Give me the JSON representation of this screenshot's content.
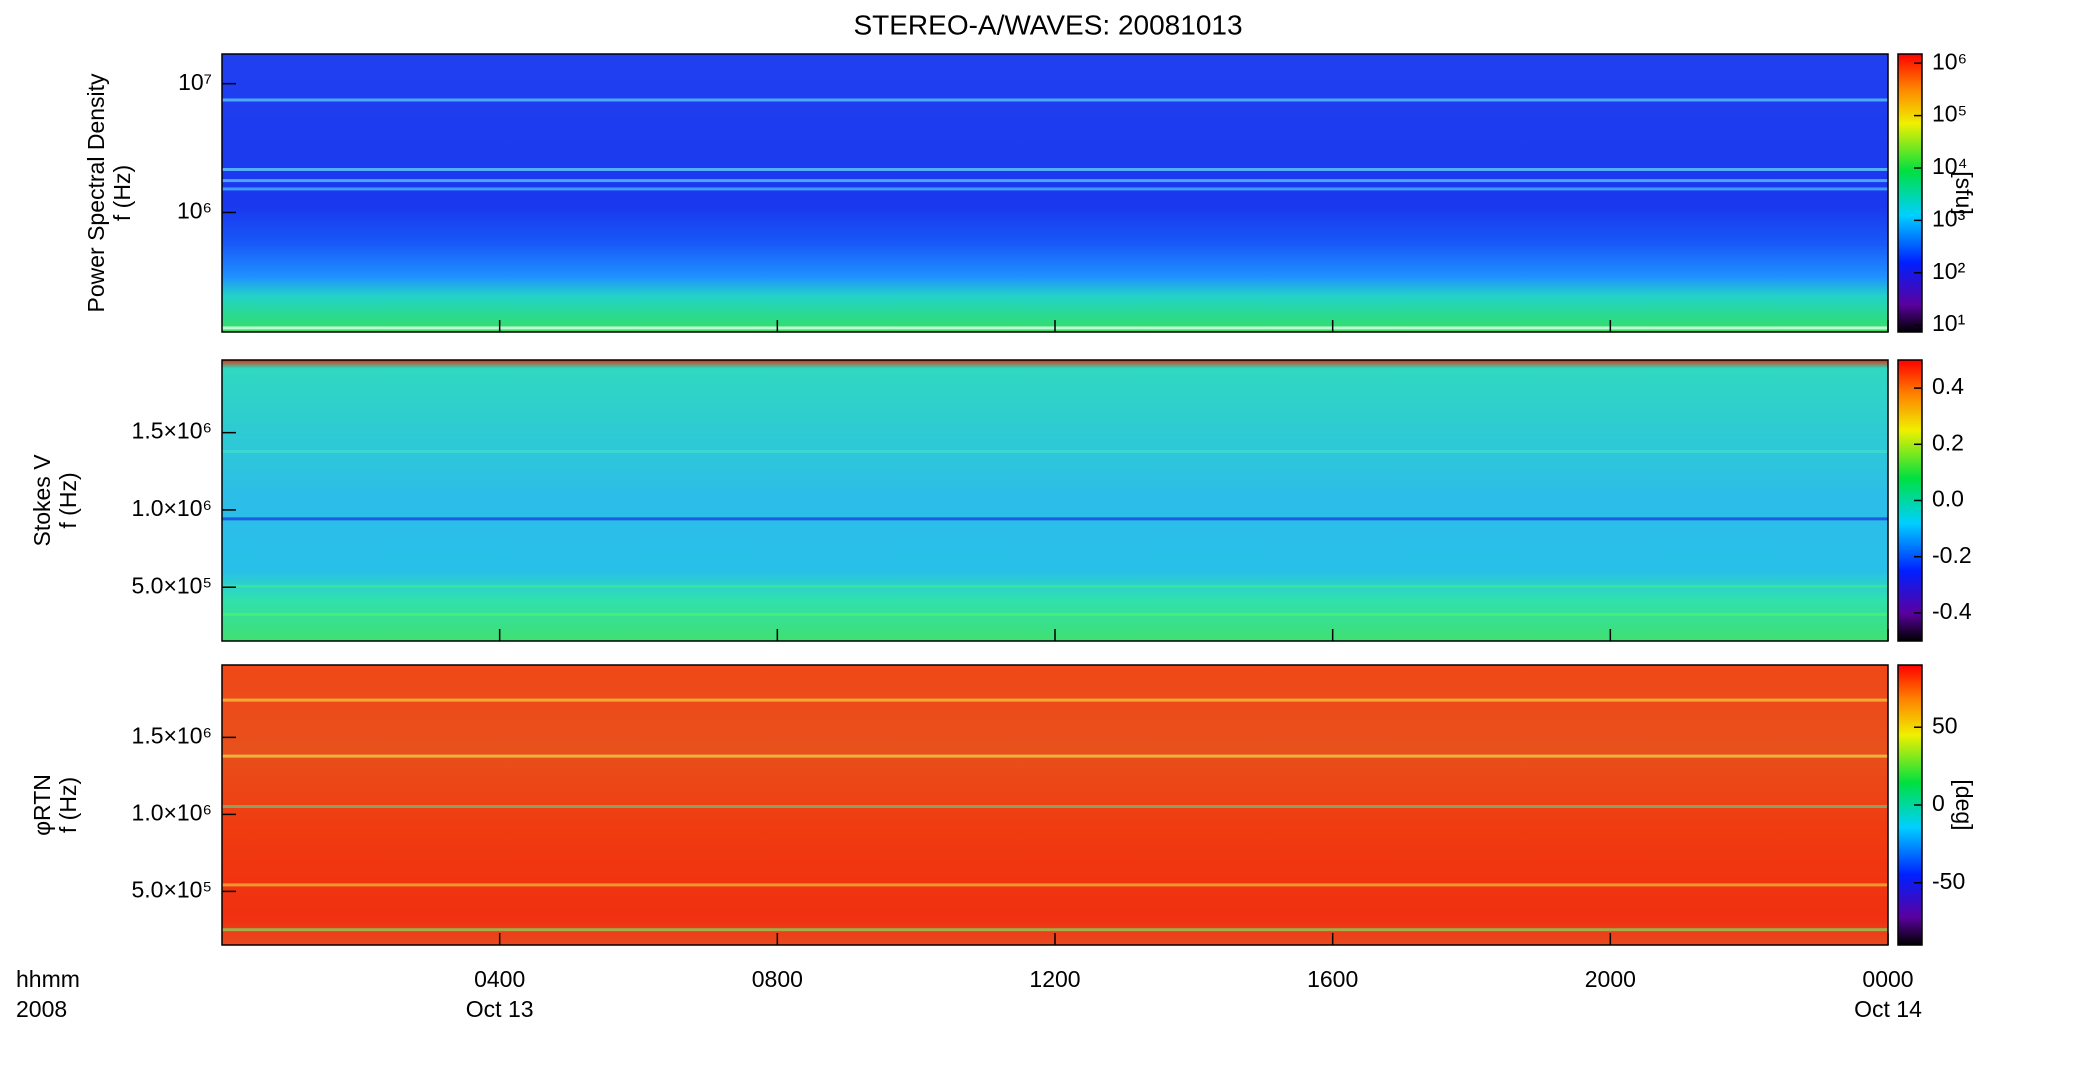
{
  "title": "STEREO-A/WAVES: 20081013",
  "x_axis": {
    "xlim": [
      0,
      24
    ],
    "xticks": [
      {
        "value": 4,
        "label": "0400"
      },
      {
        "value": 8,
        "label": "0800"
      },
      {
        "value": 12,
        "label": "1200"
      },
      {
        "value": 16,
        "label": "1600"
      },
      {
        "value": 20,
        "label": "2000"
      },
      {
        "value": 24,
        "label": "0000"
      }
    ],
    "date_ticks": [
      {
        "value": 4,
        "label": "Oct 13"
      },
      {
        "value": 24,
        "label": "Oct 14"
      }
    ],
    "labels": [
      "hhmm",
      "2008"
    ]
  },
  "chart_data": [
    {
      "type": "heatmap",
      "ylabel": [
        "Power Spectral Density",
        "f (Hz)"
      ],
      "ylog": true,
      "ylim": [
        118000,
        17000000
      ],
      "yticks": [
        {
          "value": 1000000,
          "label": "10⁶"
        },
        {
          "value": 10000000,
          "label": "10⁷"
        }
      ],
      "colorbar": {
        "label": "[sfu]",
        "log": true,
        "lim": [
          7.4,
          1500000
        ],
        "ticks": [
          {
            "value": 10,
            "label": "10¹"
          },
          {
            "value": 100,
            "label": "10²"
          },
          {
            "value": 1000,
            "label": "10³"
          },
          {
            "value": 10000,
            "label": "10⁴"
          },
          {
            "value": 100000,
            "label": "10⁵"
          },
          {
            "value": 1000000,
            "label": "10⁶"
          }
        ]
      }
    },
    {
      "type": "heatmap",
      "ylabel": [
        "Stokes V",
        "f (Hz)"
      ],
      "ylog": false,
      "ylim": [
        152000,
        1970000
      ],
      "yticks": [
        {
          "value": 500000,
          "label": "5.0×10⁵"
        },
        {
          "value": 1000000,
          "label": "1.0×10⁶"
        },
        {
          "value": 1500000,
          "label": "1.5×10⁶"
        }
      ],
      "colorbar": {
        "label": "",
        "log": false,
        "lim": [
          -0.5,
          0.5
        ],
        "ticks": [
          -0.4,
          -0.2,
          {
            "value": 0,
            "label": "0.0"
          },
          0.2,
          0.4
        ]
      }
    },
    {
      "type": "heatmap",
      "ylabel": [
        "φRTN",
        "f (Hz)"
      ],
      "ylog": false,
      "ylim": [
        152000,
        1970000
      ],
      "yticks": [
        {
          "value": 500000,
          "label": "5.0×10⁵"
        },
        {
          "value": 1000000,
          "label": "1.0×10⁶"
        },
        {
          "value": 1500000,
          "label": "1.5×10⁶"
        }
      ],
      "colorbar": {
        "label": "[deg]",
        "log": false,
        "lim": [
          -90,
          90
        ],
        "ticks": [
          -50,
          0,
          50
        ]
      }
    }
  ]
}
